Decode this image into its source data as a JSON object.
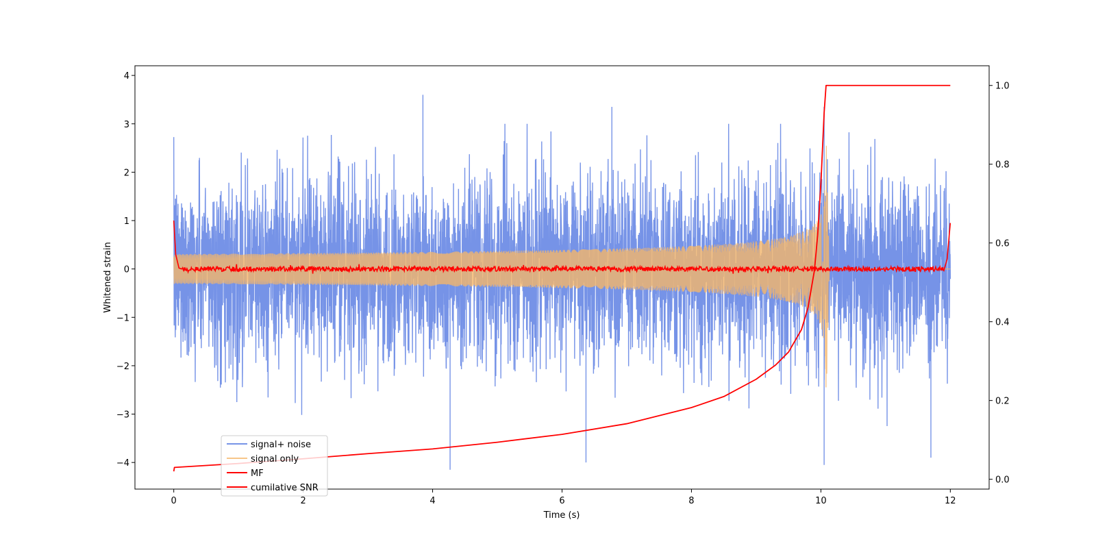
{
  "chart_data": {
    "type": "line",
    "title": "",
    "xlabel": "Time (s)",
    "ylabel": "Whitened strain",
    "y2label": "",
    "xlim": [
      -0.6,
      12.6
    ],
    "ylim": [
      -4.55,
      4.2
    ],
    "y2lim": [
      -0.025,
      1.05
    ],
    "xticks": [
      "0",
      "2",
      "4",
      "6",
      "8",
      "10",
      "12"
    ],
    "yticks": [
      "−4",
      "−3",
      "−2",
      "−1",
      "0",
      "1",
      "2",
      "3",
      "4"
    ],
    "y2ticks": [
      "0.0",
      "0.2",
      "0.4",
      "0.6",
      "0.8",
      "1.0"
    ],
    "grid": false,
    "legend_position": "lower-left",
    "colors": {
      "signal_noise": "#6f8de6",
      "signal_only": "#f5b76a",
      "mf": "#ff0000",
      "cumulative_snr": "#ff0000"
    },
    "series": [
      {
        "name": "signal+ noise",
        "axis": "left",
        "description_values": {
          "x_range": [
            0,
            12
          ],
          "typical_envelope": [
            -2.0,
            2.2
          ],
          "peaks": [
            {
              "x": 3.85,
              "y": 3.6
            },
            {
              "x": 6.77,
              "y": 3.35
            },
            {
              "x": 10.05,
              "y": 3.35
            },
            {
              "x": 4.27,
              "y": -4.15
            },
            {
              "x": 6.37,
              "y": -4.0
            },
            {
              "x": 10.05,
              "y": -4.05
            },
            {
              "x": 11.7,
              "y": -3.9
            }
          ]
        }
      },
      {
        "name": "signal only",
        "axis": "left",
        "chirp": {
          "start_x": 0,
          "merger_x": 10.08,
          "end_x": 12,
          "final_amplitude": 2.9
        }
      },
      {
        "name": "MF",
        "axis": "left",
        "points": [
          [
            0,
            1.0
          ],
          [
            0.03,
            0.3
          ],
          [
            0.08,
            0.02
          ],
          [
            0.12,
            0.0
          ],
          [
            11.9,
            0.0
          ],
          [
            11.95,
            0.2
          ],
          [
            12.0,
            0.95
          ]
        ],
        "noise_amplitude": 0.05
      },
      {
        "name": "cumilative SNR",
        "axis": "right",
        "points": [
          [
            0.0,
            0.02
          ],
          [
            0.01,
            0.03
          ],
          [
            1,
            0.04
          ],
          [
            2,
            0.052
          ],
          [
            3,
            0.065
          ],
          [
            4,
            0.077
          ],
          [
            5,
            0.094
          ],
          [
            6,
            0.114
          ],
          [
            7,
            0.141
          ],
          [
            8,
            0.182
          ],
          [
            8.5,
            0.21
          ],
          [
            9,
            0.254
          ],
          [
            9.3,
            0.29
          ],
          [
            9.5,
            0.323
          ],
          [
            9.7,
            0.38
          ],
          [
            9.8,
            0.435
          ],
          [
            9.9,
            0.53
          ],
          [
            9.95,
            0.62
          ],
          [
            10.0,
            0.75
          ],
          [
            10.05,
            0.93
          ],
          [
            10.08,
            1.0
          ],
          [
            12.0,
            1.0
          ]
        ]
      }
    ],
    "legend": [
      "signal+ noise",
      "signal only",
      "MF",
      "cumilative SNR"
    ]
  }
}
